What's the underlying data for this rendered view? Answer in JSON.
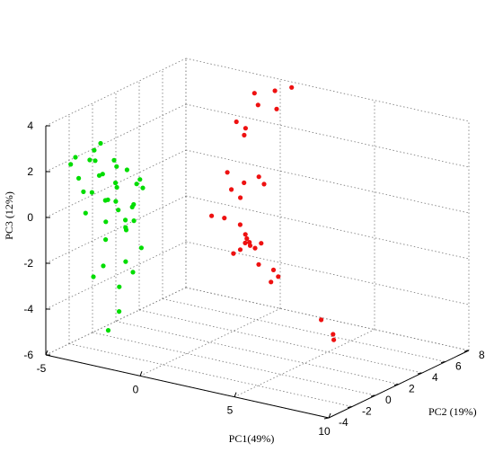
{
  "chart_data": {
    "type": "scatter",
    "projection": "3d",
    "xlabel": "PC1(49%)",
    "ylabel": "PC2 (19%)",
    "zlabel": "PC3 (12%)",
    "xlim": [
      -5,
      10
    ],
    "ylim": [
      -4,
      8
    ],
    "zlim": [
      -6,
      4
    ],
    "x_ticks": [
      -5,
      0,
      5,
      10
    ],
    "y_ticks": [
      -4,
      -2,
      0,
      2,
      4,
      6,
      8
    ],
    "z_ticks": [
      -6,
      -4,
      -2,
      0,
      2,
      4
    ],
    "grid": true,
    "series": [
      {
        "color": "#00dd00",
        "points": [
          {
            "x": -4.3,
            "y": -3.0,
            "z": 2.2
          },
          {
            "x": -4.0,
            "y": -2.8,
            "z": 1.6
          },
          {
            "x": -3.8,
            "y": -3.4,
            "z": 2.7
          },
          {
            "x": -3.6,
            "y": -2.5,
            "z": 2.4
          },
          {
            "x": -3.5,
            "y": -3.2,
            "z": 1.2
          },
          {
            "x": -3.3,
            "y": -2.6,
            "z": 2.9
          },
          {
            "x": -3.2,
            "y": -3.5,
            "z": 0.4
          },
          {
            "x": -3.1,
            "y": -2.2,
            "z": 1.8
          },
          {
            "x": -3.0,
            "y": -3.0,
            "z": 2.6
          },
          {
            "x": -2.9,
            "y": -2.7,
            "z": 3.3
          },
          {
            "x": -2.8,
            "y": -3.6,
            "z": 1.4
          },
          {
            "x": -2.7,
            "y": -2.4,
            "z": 0.8
          },
          {
            "x": -2.6,
            "y": -3.3,
            "z": 2.1
          },
          {
            "x": -2.5,
            "y": -2.9,
            "z": 0.0
          },
          {
            "x": -2.4,
            "y": -3.1,
            "z": 1.0
          },
          {
            "x": -2.3,
            "y": -2.3,
            "z": 2.3
          },
          {
            "x": -2.2,
            "y": -3.4,
            "z": -0.6
          },
          {
            "x": -2.1,
            "y": -2.6,
            "z": 1.5
          },
          {
            "x": -2.0,
            "y": -3.0,
            "z": 2.8
          },
          {
            "x": -1.9,
            "y": -2.8,
            "z": 0.6
          },
          {
            "x": -1.8,
            "y": -3.2,
            "z": 1.9
          },
          {
            "x": -1.7,
            "y": -2.5,
            "z": -0.2
          },
          {
            "x": -1.6,
            "y": -3.5,
            "z": 1.2
          },
          {
            "x": -1.5,
            "y": -2.7,
            "z": 2.4
          },
          {
            "x": -1.4,
            "y": -3.0,
            "z": 0.3
          },
          {
            "x": -1.3,
            "y": -2.2,
            "z": 1.7
          },
          {
            "x": -1.2,
            "y": -3.3,
            "z": -1.4
          },
          {
            "x": -1.1,
            "y": -2.9,
            "z": 0.9
          },
          {
            "x": -1.0,
            "y": -2.4,
            "z": 2.0
          },
          {
            "x": -0.9,
            "y": -3.1,
            "z": 1.1
          },
          {
            "x": -0.8,
            "y": -2.6,
            "z": -0.9
          },
          {
            "x": -0.7,
            "y": -3.4,
            "z": 0.5
          },
          {
            "x": -0.6,
            "y": -2.8,
            "z": 1.8
          },
          {
            "x": -2.6,
            "y": -3.8,
            "z": -2.2
          },
          {
            "x": -2.2,
            "y": -3.6,
            "z": -1.7
          },
          {
            "x": -1.6,
            "y": -3.2,
            "z": -2.6
          },
          {
            "x": -1.3,
            "y": -3.7,
            "z": -3.5
          },
          {
            "x": -1.0,
            "y": -3.0,
            "z": -1.9
          },
          {
            "x": -2.0,
            "y": -3.5,
            "z": -4.5
          },
          {
            "x": -0.8,
            "y": -3.9,
            "z": 0.2
          }
        ]
      },
      {
        "color": "#ee1111",
        "points": [
          {
            "x": 0.8,
            "y": 4.5,
            "z": 4.4
          },
          {
            "x": 1.3,
            "y": 4.0,
            "z": 4.1
          },
          {
            "x": 1.7,
            "y": 4.8,
            "z": 4.6
          },
          {
            "x": 2.1,
            "y": 4.3,
            "z": 4.0
          },
          {
            "x": 0.4,
            "y": 3.6,
            "z": 3.3
          },
          {
            "x": 1.0,
            "y": 3.3,
            "z": 2.9
          },
          {
            "x": 0.7,
            "y": 3.9,
            "z": 3.0
          },
          {
            "x": 2.4,
            "y": 5.1,
            "z": 4.8
          },
          {
            "x": 0.6,
            "y": 2.5,
            "z": 1.4
          },
          {
            "x": 1.3,
            "y": 2.8,
            "z": 1.0
          },
          {
            "x": 1.9,
            "y": 3.1,
            "z": 1.3
          },
          {
            "x": 1.0,
            "y": 2.2,
            "z": 0.8
          },
          {
            "x": 2.3,
            "y": 2.9,
            "z": 1.1
          },
          {
            "x": 1.6,
            "y": 2.0,
            "z": 0.6
          },
          {
            "x": 0.2,
            "y": 1.8,
            "z": -0.4
          },
          {
            "x": 1.0,
            "y": 1.6,
            "z": -0.3
          },
          {
            "x": 1.9,
            "y": 1.5,
            "z": -0.4
          },
          {
            "x": 2.3,
            "y": 1.3,
            "z": -0.7
          },
          {
            "x": 2.5,
            "y": 1.1,
            "z": -0.8
          },
          {
            "x": 2.7,
            "y": 1.0,
            "z": -0.9
          },
          {
            "x": 2.8,
            "y": 0.9,
            "z": -1.0
          },
          {
            "x": 2.6,
            "y": 0.8,
            "z": -0.9
          },
          {
            "x": 3.0,
            "y": 1.0,
            "z": -1.1
          },
          {
            "x": 2.4,
            "y": 0.7,
            "z": -1.2
          },
          {
            "x": 3.2,
            "y": 1.2,
            "z": -0.9
          },
          {
            "x": 2.1,
            "y": 0.6,
            "z": -1.4
          },
          {
            "x": 3.5,
            "y": 0.5,
            "z": -1.6
          },
          {
            "x": 4.1,
            "y": 0.8,
            "z": -1.8
          },
          {
            "x": 4.4,
            "y": 0.1,
            "z": -2.1
          },
          {
            "x": 4.6,
            "y": 0.4,
            "z": -1.9
          },
          {
            "x": 7.0,
            "y": 0.2,
            "z": -3.3
          },
          {
            "x": 8.0,
            "y": -0.4,
            "z": -3.6
          },
          {
            "x": 8.1,
            "y": -0.5,
            "z": -3.8
          }
        ]
      }
    ]
  }
}
